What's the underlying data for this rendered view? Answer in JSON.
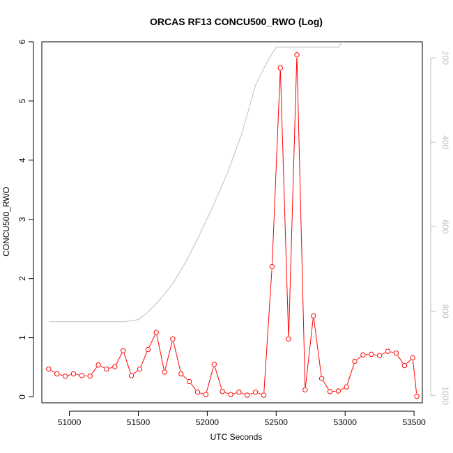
{
  "chart_data": {
    "type": "line",
    "title": "ORCAS RF13 CONCU500_RWO (Log)",
    "xlabel": "UTC Seconds",
    "ylabel": "CONCU500_RWO",
    "xlim": [
      50800,
      53560
    ],
    "ylim": [
      -0.1,
      6
    ],
    "x_ticks": [
      51000,
      51500,
      52000,
      52500,
      53000,
      53500
    ],
    "x_tick_labels": [
      "51000",
      "51500",
      "52000",
      "52500",
      "53000",
      "53500"
    ],
    "y_ticks": [
      0,
      1,
      2,
      3,
      4,
      5,
      6
    ],
    "y_tick_labels": [
      "0",
      "1",
      "2",
      "3",
      "4",
      "5",
      "6"
    ],
    "y2_ticks": [
      200,
      400,
      600,
      800,
      1000
    ],
    "y2_tick_labels": [
      "200",
      "400",
      "600",
      "800",
      "1000"
    ],
    "y2_lim": [
      1017,
      162
    ],
    "y2_inverted": true,
    "grid": false,
    "series": [
      {
        "color": "#ff0000",
        "marker": "open-circle",
        "x": [
          50850,
          50910,
          50970,
          51030,
          51090,
          51150,
          51210,
          51270,
          51330,
          51390,
          51450,
          51510,
          51570,
          51630,
          51690,
          51750,
          51810,
          51870,
          51930,
          51990,
          52050,
          52110,
          52170,
          52230,
          52290,
          52350,
          52410,
          52470,
          52530,
          52590,
          52650,
          52710,
          52770,
          52830,
          52890,
          52950,
          53010,
          53070,
          53130,
          53190,
          53250,
          53310,
          53370,
          53430,
          53490,
          53520
        ],
        "y": [
          0.47,
          0.39,
          0.35,
          0.39,
          0.36,
          0.35,
          0.54,
          0.47,
          0.51,
          0.78,
          0.36,
          0.47,
          0.8,
          1.09,
          0.42,
          0.98,
          0.39,
          0.26,
          0.08,
          0.04,
          0.55,
          0.09,
          0.04,
          0.08,
          0.03,
          0.08,
          0.03,
          2.2,
          5.56,
          0.98,
          5.78,
          0.12,
          1.37,
          0.31,
          0.09,
          0.1,
          0.17,
          0.6,
          0.71,
          0.72,
          0.7,
          0.77,
          0.74,
          0.53,
          0.66,
          0.01
        ]
      },
      {
        "color": "#bebebe",
        "marker": "none",
        "axis": "right",
        "x": [
          50850,
          51000,
          51200,
          51400,
          51500,
          51560,
          51650,
          51750,
          51850,
          51950,
          52050,
          52150,
          52250,
          52350,
          52450,
          52500,
          52550,
          52700,
          52800,
          52950,
          53000,
          53050
        ],
        "y": [
          825,
          825,
          825,
          825,
          820,
          805,
          775,
          735,
          680,
          615,
          545,
          470,
          380,
          265,
          200,
          175,
          175,
          175,
          175,
          175,
          155,
          100
        ]
      }
    ]
  }
}
